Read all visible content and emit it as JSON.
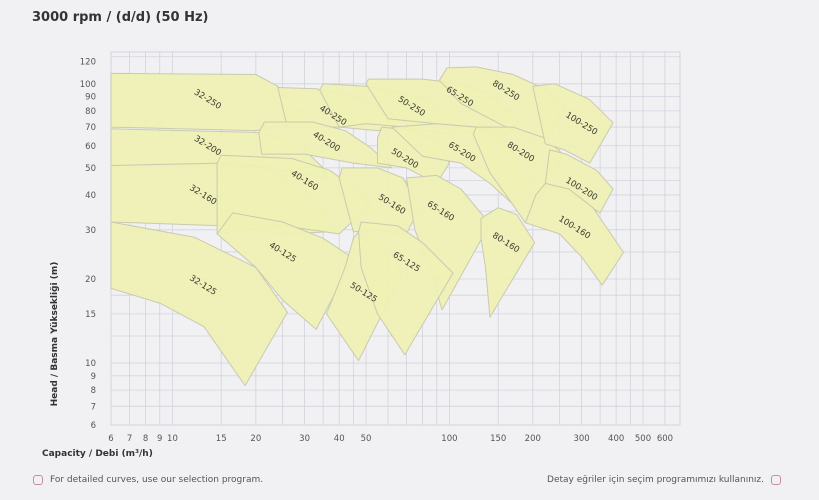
{
  "title": "3000 rpm / (d/d) (50 Hz)",
  "footer": {
    "left_text": "For detailed curves, use our selection program.",
    "right_text": "Detay eğriler için seçim programımızı kullanınız.",
    "left_icon": "rounded-square-bullet-icon",
    "right_icon": "rounded-square-bullet-icon",
    "icon_color": "#c98aa8"
  },
  "chart_data": {
    "type": "area",
    "xlabel": "Capacity / Debi (m³/h)",
    "ylabel": "Head / Basma Yüksekliği (m)",
    "xscale": "log",
    "yscale": "log",
    "xlim": [
      6,
      680
    ],
    "ylim": [
      6,
      130
    ],
    "grid": true,
    "xticks": [
      6,
      7,
      8,
      9,
      10,
      15,
      20,
      30,
      40,
      50,
      100,
      150,
      200,
      300,
      400,
      500,
      600
    ],
    "yticks": [
      6,
      7,
      8,
      9,
      10,
      15,
      20,
      30,
      40,
      50,
      60,
      70,
      80,
      90,
      100,
      120
    ],
    "colors": {
      "fill": "#eef0b4",
      "stroke": "#c9cab0",
      "grid": "#d2d3dc",
      "background": "#f1f1f4"
    },
    "regions": [
      {
        "name": "32-250",
        "label_at": [
          13.4,
          88
        ],
        "points": [
          [
            6,
            109
          ],
          [
            20,
            108
          ],
          [
            24,
            98
          ],
          [
            28,
            82
          ],
          [
            30,
            73
          ],
          [
            20,
            68
          ],
          [
            6,
            70
          ]
        ]
      },
      {
        "name": "32-200",
        "label_at": [
          13.4,
          60
        ],
        "points": [
          [
            6,
            69
          ],
          [
            20,
            67
          ],
          [
            28,
            62
          ],
          [
            35,
            50
          ],
          [
            36,
            46
          ],
          [
            20,
            51
          ],
          [
            6,
            51
          ]
        ]
      },
      {
        "name": "32-160",
        "label_at": [
          12.9,
          40
        ],
        "points": [
          [
            6,
            51
          ],
          [
            15,
            52
          ],
          [
            22,
            50
          ],
          [
            30,
            42
          ],
          [
            38,
            31
          ],
          [
            37,
            29.5
          ],
          [
            25,
            29
          ],
          [
            15,
            31
          ],
          [
            6,
            32
          ]
        ]
      },
      {
        "name": "32-125",
        "label_at": [
          12.9,
          19
        ],
        "points": [
          [
            6,
            32
          ],
          [
            12,
            28.2
          ],
          [
            20,
            22
          ],
          [
            26,
            15.2
          ],
          [
            18.3,
            8.3
          ],
          [
            13,
            13.5
          ],
          [
            9,
            16.4
          ],
          [
            6,
            18.5
          ]
        ]
      },
      {
        "name": "40-250",
        "label_at": [
          38,
          77
        ],
        "points": [
          [
            24,
            97
          ],
          [
            33,
            96
          ],
          [
            45,
            90
          ],
          [
            60,
            80
          ],
          [
            72,
            71
          ],
          [
            55,
            68
          ],
          [
            40,
            70
          ],
          [
            26,
            70
          ]
        ]
      },
      {
        "name": "40-200",
        "label_at": [
          36,
          62
        ],
        "points": [
          [
            20.5,
            67
          ],
          [
            21.5,
            73
          ],
          [
            32,
            73
          ],
          [
            42,
            68
          ],
          [
            52,
            59
          ],
          [
            62,
            50
          ],
          [
            45,
            52
          ],
          [
            30,
            56
          ],
          [
            21,
            56
          ]
        ]
      },
      {
        "name": "40-160",
        "label_at": [
          30,
          45
        ],
        "points": [
          [
            14.5,
            52
          ],
          [
            15,
            55.5
          ],
          [
            27,
            54
          ],
          [
            37,
            49
          ],
          [
            46,
            42
          ],
          [
            52,
            37
          ],
          [
            40,
            29
          ],
          [
            25,
            31
          ],
          [
            14.5,
            29
          ]
        ]
      },
      {
        "name": "40-125",
        "label_at": [
          25,
          24.9
        ],
        "points": [
          [
            14.5,
            29
          ],
          [
            16.5,
            34.5
          ],
          [
            25,
            32
          ],
          [
            35,
            28
          ],
          [
            45,
            23.7
          ],
          [
            33,
            13.2
          ],
          [
            25,
            16.8
          ],
          [
            20,
            22
          ]
        ]
      },
      {
        "name": "50-250",
        "label_at": [
          73,
          83
        ],
        "points": [
          [
            34,
            95
          ],
          [
            35,
            100
          ],
          [
            50,
            98
          ],
          [
            70,
            92
          ],
          [
            95,
            82
          ],
          [
            125,
            68
          ],
          [
            100,
            66
          ],
          [
            70,
            70
          ],
          [
            50,
            72
          ],
          [
            40,
            70
          ]
        ]
      },
      {
        "name": "50-200",
        "label_at": [
          69,
          54
        ],
        "points": [
          [
            55,
            64
          ],
          [
            57,
            70
          ],
          [
            75,
            68
          ],
          [
            90,
            62
          ],
          [
            100,
            52
          ],
          [
            90,
            44
          ],
          [
            70,
            50
          ],
          [
            55,
            52
          ]
        ]
      },
      {
        "name": "50-160",
        "label_at": [
          62,
          37
        ],
        "points": [
          [
            40,
            46
          ],
          [
            41,
            50
          ],
          [
            55,
            50
          ],
          [
            68,
            46
          ],
          [
            78,
            36
          ],
          [
            70,
            29
          ],
          [
            55,
            30
          ],
          [
            45,
            29.5
          ]
        ]
      },
      {
        "name": "50-125",
        "label_at": [
          49,
          17.9
        ],
        "points": [
          [
            45,
            28
          ],
          [
            47,
            29.5
          ],
          [
            55,
            28
          ],
          [
            62,
            25
          ],
          [
            67,
            20.5
          ],
          [
            47,
            10.2
          ],
          [
            36,
            15
          ],
          [
            42,
            22
          ]
        ]
      },
      {
        "name": "65-250",
        "label_at": [
          109,
          90
        ],
        "points": [
          [
            50,
            100
          ],
          [
            51,
            104
          ],
          [
            80,
            104
          ],
          [
            110,
            100
          ],
          [
            140,
            92
          ],
          [
            177,
            74
          ],
          [
            160,
            66
          ],
          [
            125,
            70
          ],
          [
            90,
            72
          ],
          [
            60,
            75
          ]
        ]
      },
      {
        "name": "65-200",
        "label_at": [
          111,
          57
        ],
        "points": [
          [
            62,
            70
          ],
          [
            90,
            72
          ],
          [
            125,
            70
          ],
          [
            160,
            62
          ],
          [
            195,
            45
          ],
          [
            170,
            37
          ],
          [
            140,
            44
          ],
          [
            110,
            52
          ],
          [
            80,
            55
          ]
        ]
      },
      {
        "name": "65-160",
        "label_at": [
          93,
          35
        ],
        "points": [
          [
            70,
            46
          ],
          [
            90,
            47
          ],
          [
            110,
            42
          ],
          [
            140,
            31.5
          ],
          [
            94,
            15.5
          ],
          [
            85,
            22
          ],
          [
            75,
            30
          ]
        ]
      },
      {
        "name": "65-125",
        "label_at": [
          70,
          23
        ],
        "points": [
          [
            47,
            29.5
          ],
          [
            48,
            32
          ],
          [
            65,
            31
          ],
          [
            80,
            27
          ],
          [
            103,
            21
          ],
          [
            69,
            10.7
          ],
          [
            55,
            15
          ],
          [
            48,
            22
          ]
        ]
      },
      {
        "name": "80-250",
        "label_at": [
          160,
          94.5
        ],
        "points": [
          [
            92,
            103
          ],
          [
            98,
            114
          ],
          [
            125,
            115
          ],
          [
            170,
            108
          ],
          [
            220,
            96
          ],
          [
            264,
            83
          ],
          [
            222,
            61
          ],
          [
            180,
            66
          ],
          [
            140,
            75
          ],
          [
            110,
            85
          ]
        ]
      },
      {
        "name": "80-200",
        "label_at": [
          181,
          57
        ],
        "points": [
          [
            122,
            66
          ],
          [
            125,
            70
          ],
          [
            170,
            70
          ],
          [
            220,
            64
          ],
          [
            257,
            56
          ],
          [
            188,
            31.8
          ],
          [
            160,
            40
          ],
          [
            140,
            48
          ]
        ]
      },
      {
        "name": "80-160",
        "label_at": [
          160,
          27
        ],
        "points": [
          [
            130,
            33
          ],
          [
            150,
            36
          ],
          [
            175,
            34
          ],
          [
            203,
            27
          ],
          [
            140,
            14.6
          ],
          [
            135,
            22
          ],
          [
            130,
            28
          ]
        ]
      },
      {
        "name": "100-250",
        "label_at": [
          300,
          72
        ],
        "points": [
          [
            200,
            98
          ],
          [
            240,
            100
          ],
          [
            320,
            88
          ],
          [
            390,
            72.5
          ],
          [
            321,
            52
          ],
          [
            260,
            58
          ],
          [
            222,
            61
          ]
        ]
      },
      {
        "name": "100-200",
        "label_at": [
          300,
          42
        ],
        "points": [
          [
            230,
            58
          ],
          [
            264,
            56
          ],
          [
            340,
            49
          ],
          [
            390,
            42
          ],
          [
            350,
            34.5
          ],
          [
            280,
            40
          ],
          [
            222,
            44
          ]
        ]
      },
      {
        "name": "100-160",
        "label_at": [
          283,
          30.6
        ],
        "points": [
          [
            188,
            31.8
          ],
          [
            205,
            40
          ],
          [
            222,
            44
          ],
          [
            270,
            42
          ],
          [
            330,
            36
          ],
          [
            425,
            24.9
          ],
          [
            356,
            19
          ],
          [
            300,
            24
          ],
          [
            250,
            29
          ]
        ]
      }
    ]
  }
}
